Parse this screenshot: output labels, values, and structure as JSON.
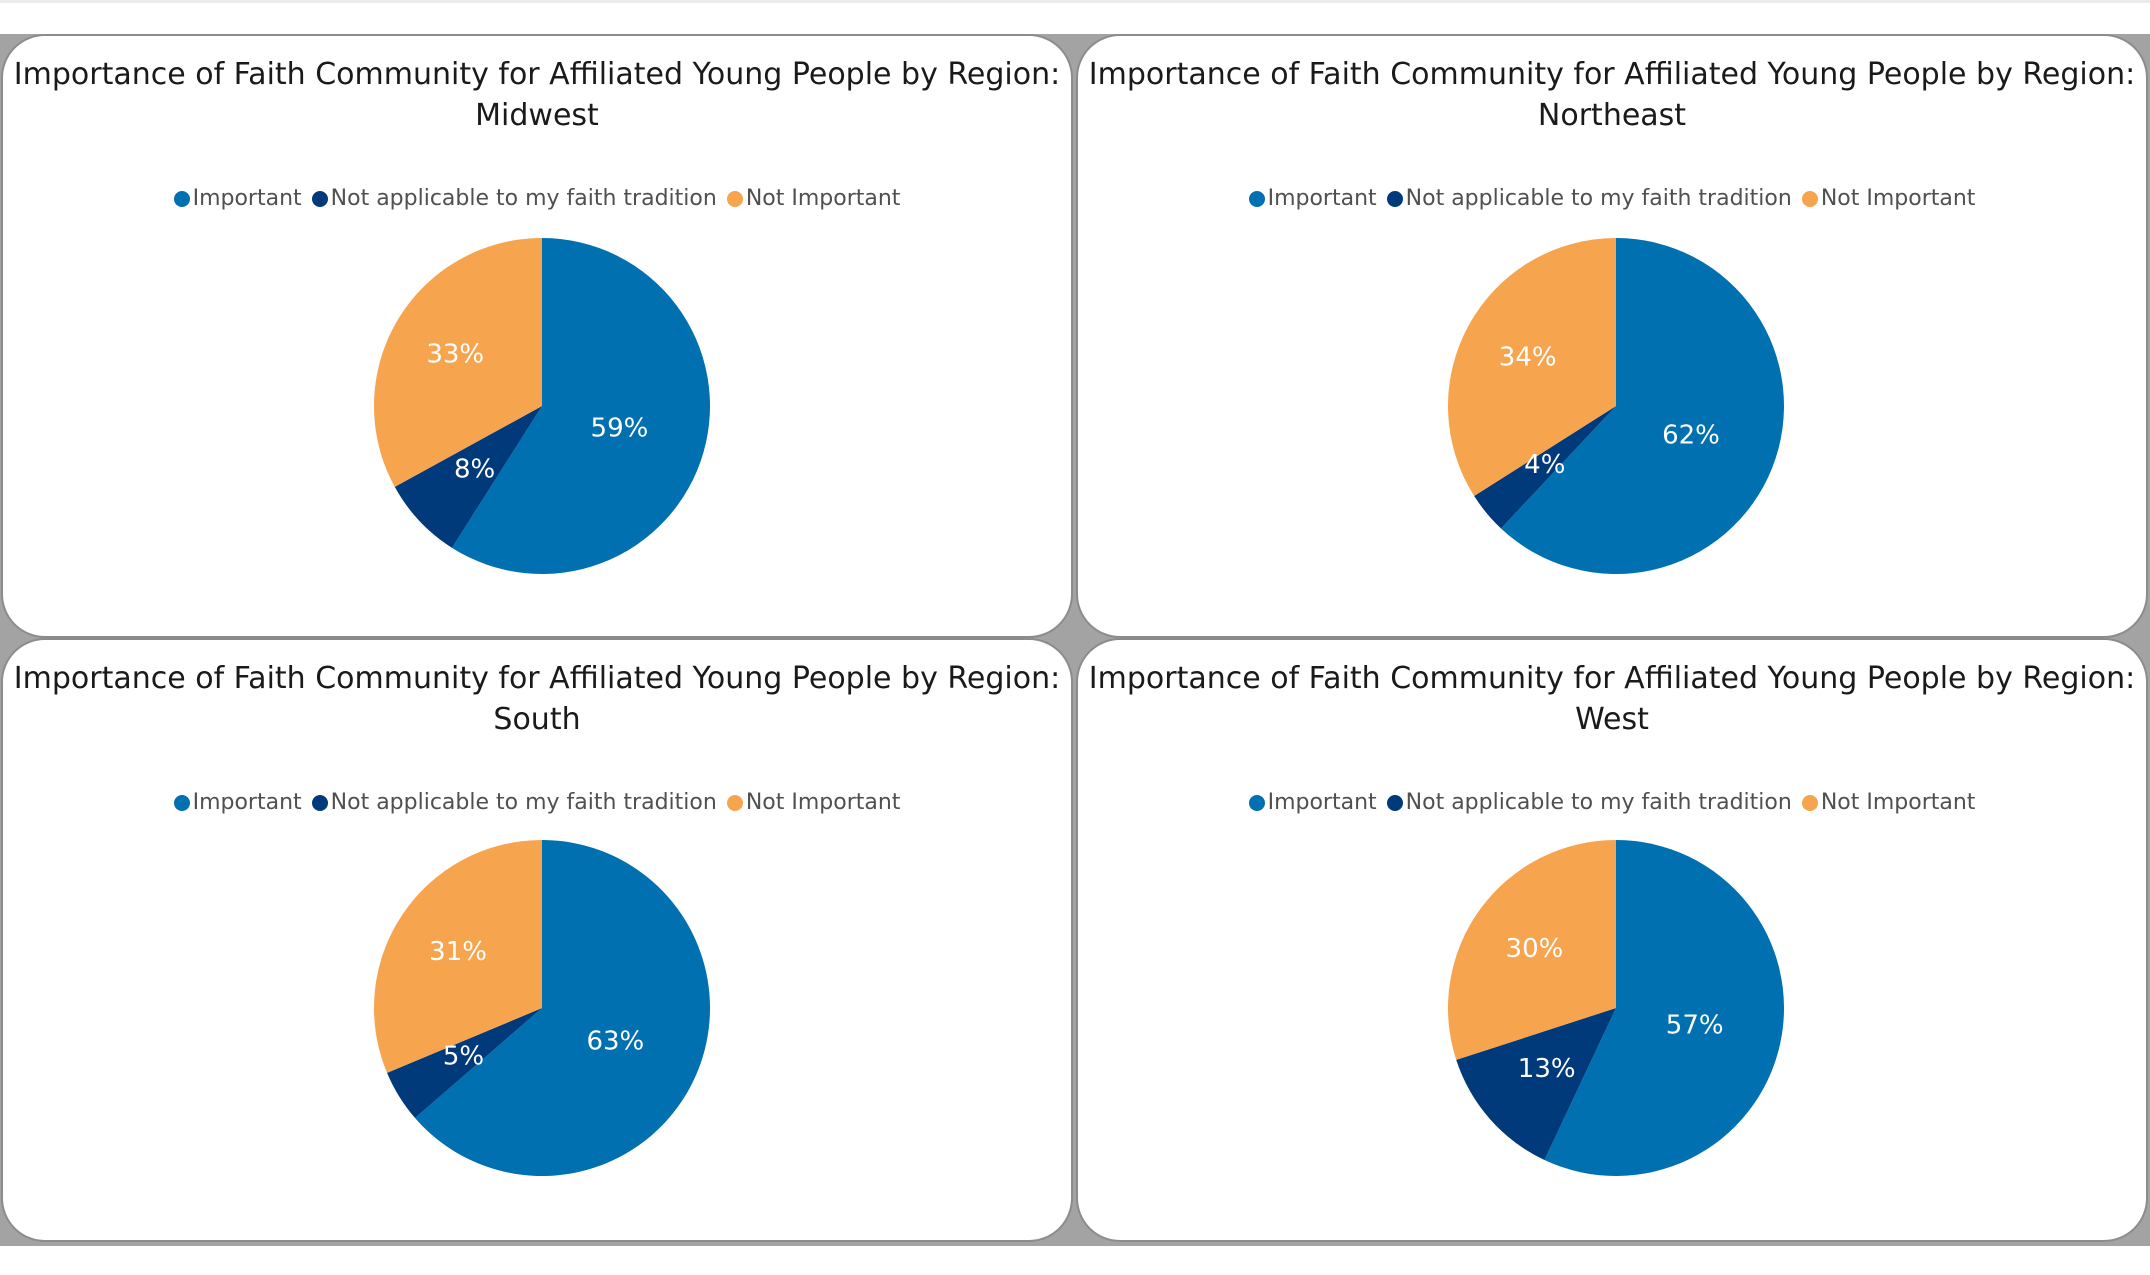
{
  "colors": {
    "important": "#0070b0",
    "not_applicable": "#003a7a",
    "not_important": "#f7a44f"
  },
  "legend": {
    "important": "Important",
    "not_applicable": "Not applicable to my faith tradition",
    "not_important": "Not Important"
  },
  "chart_data": [
    {
      "type": "pie",
      "title": "Importance of Faith Community for Affiliated Young People by Region: Midwest",
      "title_line1": "Importance of Faith Community for Affiliated Young People by Region:",
      "title_line2": "Midwest",
      "categories": [
        "Important",
        "Not applicable to my faith tradition",
        "Not Important"
      ],
      "values": [
        59,
        8,
        33
      ],
      "labels": [
        "59%",
        "8%",
        "33%"
      ]
    },
    {
      "type": "pie",
      "title": "Importance of Faith Community for Affiliated Young People by Region: Northeast",
      "title_line1": "Importance of Faith Community for Affiliated Young People by Region:",
      "title_line2": "Northeast",
      "categories": [
        "Important",
        "Not applicable to my faith tradition",
        "Not Important"
      ],
      "values": [
        62,
        4,
        34
      ],
      "labels": [
        "62%",
        "4%",
        "34%"
      ]
    },
    {
      "type": "pie",
      "title": "Importance of Faith Community for Affiliated Young People by Region: South",
      "title_line1": "Importance of Faith Community for Affiliated Young People by Region:",
      "title_line2": "South",
      "categories": [
        "Important",
        "Not applicable to my faith tradition",
        "Not Important"
      ],
      "values": [
        63,
        5,
        31
      ],
      "labels": [
        "63%",
        "5%",
        "31%"
      ]
    },
    {
      "type": "pie",
      "title": "Importance of Faith Community for Affiliated Young People by Region: West",
      "title_line1": "Importance of Faith Community for Affiliated Young People by Region:",
      "title_line2": "West",
      "categories": [
        "Important",
        "Not applicable to my faith tradition",
        "Not Important"
      ],
      "values": [
        57,
        13,
        30
      ],
      "labels": [
        "57%",
        "13%",
        "30%"
      ]
    }
  ]
}
